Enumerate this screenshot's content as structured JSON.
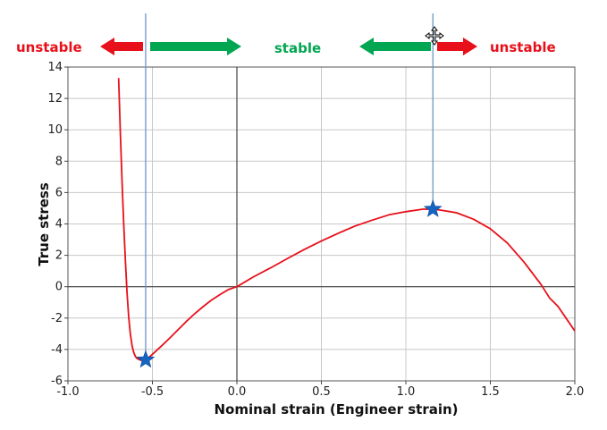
{
  "chart_data": {
    "type": "line",
    "title": "",
    "xlabel": "Nominal strain (Engineer strain)",
    "ylabel": "True stress",
    "xlim": [
      -1.0,
      2.0
    ],
    "ylim": [
      -6,
      14
    ],
    "x_ticks": [
      -1.0,
      -0.5,
      0.0,
      0.5,
      1.0,
      1.5,
      2.0
    ],
    "x_tick_labels": [
      "-1.0",
      "-0.5",
      "0.0",
      "0.5",
      "1.0",
      "1.5",
      "2.0"
    ],
    "y_ticks": [
      -6,
      -4,
      -2,
      0,
      2,
      4,
      6,
      8,
      10,
      12,
      14
    ],
    "y_tick_labels": [
      "-6",
      "-4",
      "-2",
      "0",
      "2",
      "4",
      "6",
      "8",
      "10",
      "12",
      "14"
    ],
    "grid": true,
    "series": [
      {
        "color": "#e8101a",
        "x": [
          -0.7,
          -0.69,
          -0.68,
          -0.67,
          -0.66,
          -0.65,
          -0.64,
          -0.63,
          -0.62,
          -0.61,
          -0.6,
          -0.59,
          -0.58,
          -0.57,
          -0.56,
          -0.55,
          -0.54,
          -0.53,
          -0.52,
          -0.5,
          -0.45,
          -0.4,
          -0.35,
          -0.3,
          -0.25,
          -0.2,
          -0.15,
          -0.1,
          -0.05,
          0.0,
          0.1,
          0.2,
          0.3,
          0.4,
          0.5,
          0.6,
          0.7,
          0.8,
          0.9,
          1.0,
          1.1,
          1.16,
          1.2,
          1.3,
          1.4,
          1.5,
          1.6,
          1.7,
          1.8,
          1.85,
          1.9,
          2.0
        ],
        "y": [
          13.3,
          9.85,
          6.74,
          4.0,
          1.63,
          -0.38,
          -1.96,
          -3.06,
          -3.78,
          -4.21,
          -4.46,
          -4.58,
          -4.64,
          -4.68,
          -4.71,
          -4.7,
          -4.66,
          -4.58,
          -4.5,
          -4.31,
          -3.82,
          -3.3,
          -2.76,
          -2.22,
          -1.72,
          -1.27,
          -0.85,
          -0.5,
          -0.18,
          0.0,
          0.64,
          1.2,
          1.8,
          2.38,
          2.91,
          3.41,
          3.87,
          4.24,
          4.58,
          4.78,
          4.94,
          4.94,
          4.89,
          4.71,
          4.3,
          3.69,
          2.79,
          1.56,
          0.14,
          -0.71,
          -1.25,
          -2.82
        ]
      }
    ],
    "markers": [
      {
        "x": -0.54,
        "y": -4.66,
        "symbol": "star",
        "color": "#1565c0"
      },
      {
        "x": 1.16,
        "y": 4.94,
        "symbol": "star",
        "color": "#1565c0"
      }
    ],
    "vertical_lines": [
      -0.54,
      1.16
    ],
    "annotations": {
      "unstable_left": "unstable",
      "stable": "stable",
      "unstable_right": "unstable",
      "stable_color": "#00a651",
      "unstable_color": "#e8101a"
    }
  }
}
